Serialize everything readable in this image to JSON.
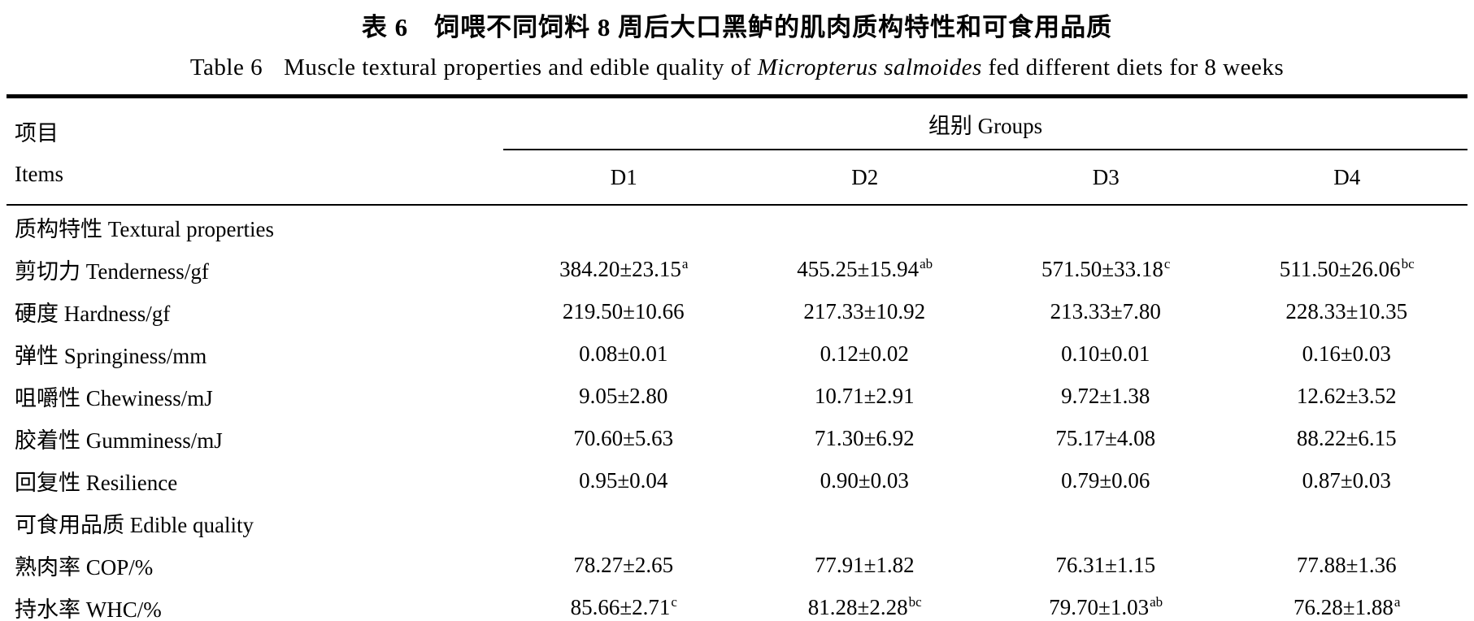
{
  "titles": {
    "cn": "表 6　饲喂不同饲料 8 周后大口黑鲈的肌肉质构特性和可食用品质",
    "en_prefix": "Table 6",
    "en_main": "Muscle textural properties and edible quality of ",
    "en_species": "Micropterus salmoides",
    "en_suffix": " fed different diets for 8 weeks"
  },
  "table": {
    "items_header_cn": "项目",
    "items_header_en": "Items",
    "groups_header": "组别 Groups",
    "group_columns": [
      "D1",
      "D2",
      "D3",
      "D4"
    ],
    "rows": [
      {
        "type": "section",
        "label": "质构特性 Textural properties"
      },
      {
        "type": "data",
        "label": "剪切力 Tenderness/gf",
        "values": [
          {
            "v": "384.20±23.15",
            "sup": "a"
          },
          {
            "v": "455.25±15.94",
            "sup": "ab"
          },
          {
            "v": "571.50±33.18",
            "sup": "c"
          },
          {
            "v": "511.50±26.06",
            "sup": "bc"
          }
        ]
      },
      {
        "type": "data",
        "label": "硬度 Hardness/gf",
        "values": [
          {
            "v": "219.50±10.66",
            "sup": ""
          },
          {
            "v": "217.33±10.92",
            "sup": ""
          },
          {
            "v": "213.33±7.80",
            "sup": ""
          },
          {
            "v": "228.33±10.35",
            "sup": ""
          }
        ]
      },
      {
        "type": "data",
        "label": "弹性 Springiness/mm",
        "values": [
          {
            "v": "0.08±0.01",
            "sup": ""
          },
          {
            "v": "0.12±0.02",
            "sup": ""
          },
          {
            "v": "0.10±0.01",
            "sup": ""
          },
          {
            "v": "0.16±0.03",
            "sup": ""
          }
        ]
      },
      {
        "type": "data",
        "label": "咀嚼性 Chewiness/mJ",
        "values": [
          {
            "v": "9.05±2.80",
            "sup": ""
          },
          {
            "v": "10.71±2.91",
            "sup": ""
          },
          {
            "v": "9.72±1.38",
            "sup": ""
          },
          {
            "v": "12.62±3.52",
            "sup": ""
          }
        ]
      },
      {
        "type": "data",
        "label": "胶着性 Gumminess/mJ",
        "values": [
          {
            "v": "70.60±5.63",
            "sup": ""
          },
          {
            "v": "71.30±6.92",
            "sup": ""
          },
          {
            "v": "75.17±4.08",
            "sup": ""
          },
          {
            "v": "88.22±6.15",
            "sup": ""
          }
        ]
      },
      {
        "type": "data",
        "label": "回复性 Resilience",
        "values": [
          {
            "v": "0.95±0.04",
            "sup": ""
          },
          {
            "v": "0.90±0.03",
            "sup": ""
          },
          {
            "v": "0.79±0.06",
            "sup": ""
          },
          {
            "v": "0.87±0.03",
            "sup": ""
          }
        ]
      },
      {
        "type": "section",
        "label": "可食用品质 Edible quality"
      },
      {
        "type": "data",
        "label": "熟肉率 COP/%",
        "values": [
          {
            "v": "78.27±2.65",
            "sup": ""
          },
          {
            "v": "77.91±1.82",
            "sup": ""
          },
          {
            "v": "76.31±1.15",
            "sup": ""
          },
          {
            "v": "77.88±1.36",
            "sup": ""
          }
        ]
      },
      {
        "type": "data",
        "label": "持水率 WHC/%",
        "values": [
          {
            "v": "85.66±2.71",
            "sup": "c"
          },
          {
            "v": "81.28±2.28",
            "sup": "bc"
          },
          {
            "v": "79.70±1.03",
            "sup": "ab"
          },
          {
            "v": "76.28±1.88",
            "sup": "a"
          }
        ]
      }
    ]
  }
}
